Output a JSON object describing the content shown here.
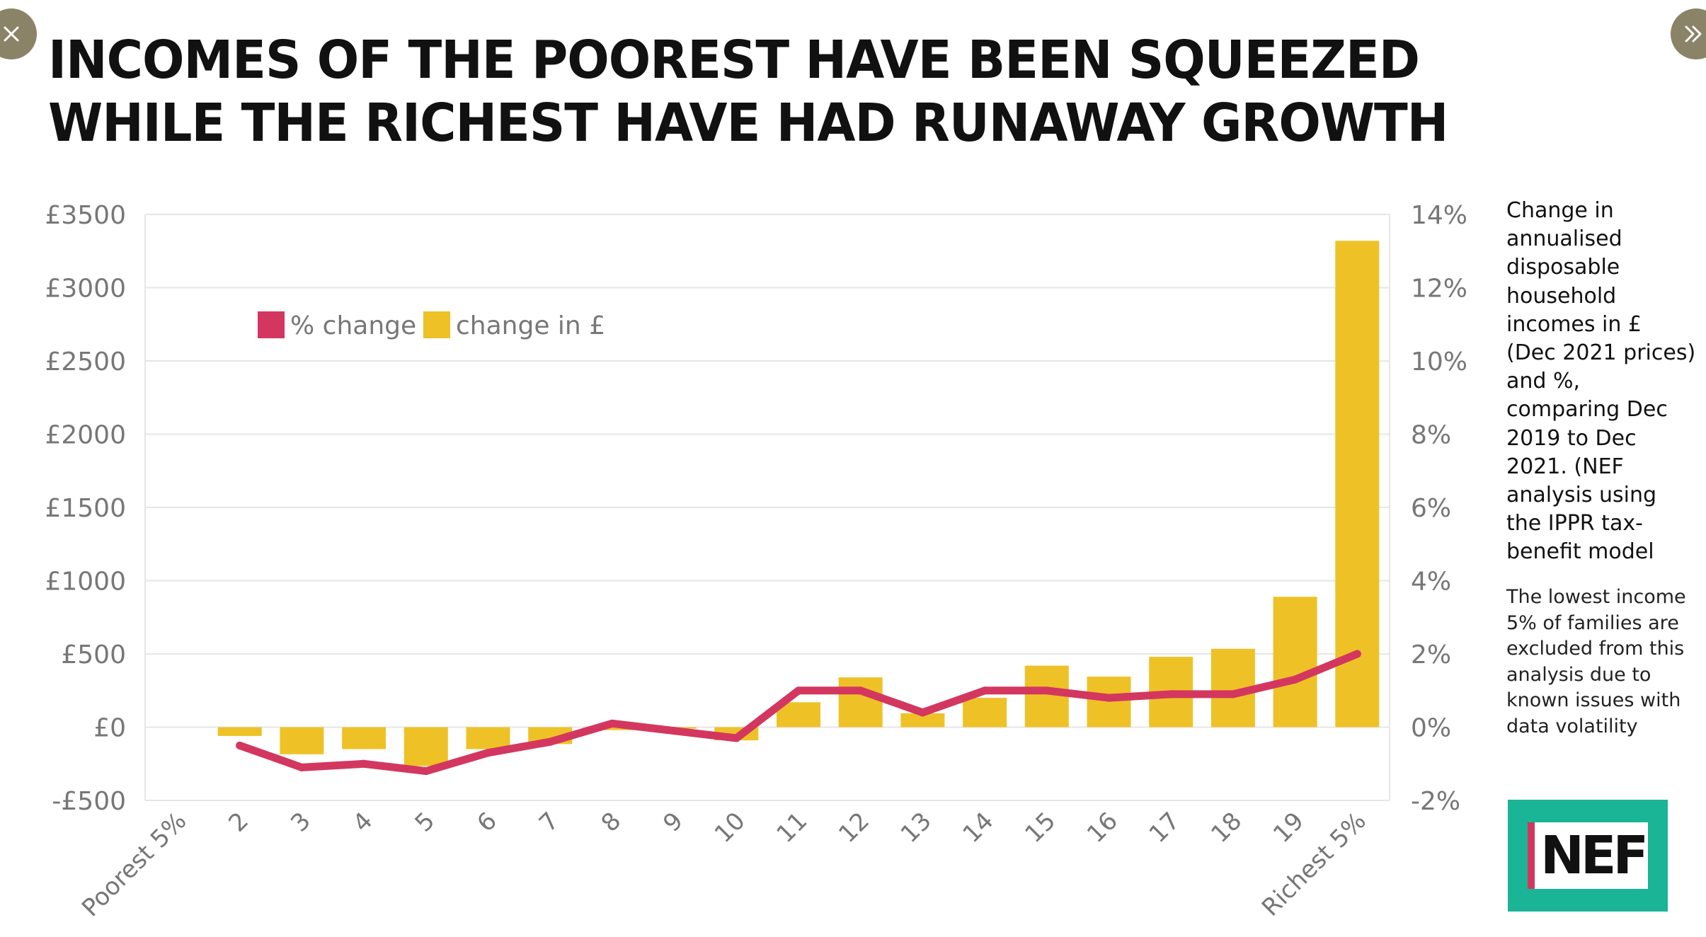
{
  "title": {
    "line1": "INCOMES OF THE POOREST HAVE BEEN SQUEEZED",
    "line2": "WHILE THE RICHEST HAVE HAD RUNAWAY GROWTH"
  },
  "nav": {
    "close_icon": "close-icon",
    "next_icon": "chevron-double-right-icon"
  },
  "side_note": "Change in annualised disposable household incomes in £ (Dec 2021 prices) and %, comparing Dec 2019 to Dec 2021. (NEF analysis using the IPPR tax-benefit model",
  "side_note_2": "The lowest income 5% of families are excluded from this analysis due to known issues with data volatility",
  "logo": {
    "text": "NEF"
  },
  "colors": {
    "bar": "#eec227",
    "line": "#d3375f",
    "grid": "#e6e6e6",
    "axis_text": "#777777",
    "logo_bg": "#1ab496",
    "nav": "#8b8367"
  },
  "chart_data": {
    "type": "bar",
    "categories": [
      "Poorest 5%",
      "2",
      "3",
      "4",
      "5",
      "6",
      "7",
      "8",
      "9",
      "10",
      "11",
      "12",
      "13",
      "14",
      "15",
      "16",
      "17",
      "18",
      "19",
      "Richest 5%"
    ],
    "series": [
      {
        "name": "change in £",
        "type": "bar",
        "axis": "left",
        "values": [
          null,
          -60,
          -185,
          -150,
          -265,
          -150,
          -115,
          -20,
          -10,
          -90,
          170,
          340,
          95,
          200,
          420,
          345,
          480,
          535,
          890,
          3320
        ]
      },
      {
        "name": "% change",
        "type": "line",
        "axis": "right",
        "values": [
          null,
          -0.5,
          -1.1,
          -1.0,
          -1.2,
          -0.7,
          -0.4,
          0.1,
          -0.1,
          -0.3,
          1.0,
          1.0,
          0.4,
          1.0,
          1.0,
          0.8,
          0.9,
          0.9,
          1.3,
          2.0
        ]
      }
    ],
    "y_left": {
      "ylim": [
        -500,
        3500
      ],
      "ticks": [
        -500,
        0,
        500,
        1000,
        1500,
        2000,
        2500,
        3000,
        3500
      ],
      "tick_labels": [
        "-£500",
        "£0",
        "£500",
        "£1000",
        "£1500",
        "£2000",
        "£2500",
        "£3000",
        "£3500"
      ]
    },
    "y_right": {
      "ylim": [
        -2,
        14
      ],
      "ticks": [
        -2,
        0,
        2,
        4,
        6,
        8,
        10,
        12,
        14
      ],
      "tick_labels": [
        "-2%",
        "0%",
        "2%",
        "4%",
        "6%",
        "8%",
        "10%",
        "12%",
        "14%"
      ]
    },
    "legend": {
      "placement": "top-left",
      "entries": [
        {
          "label": "% change",
          "color": "#d3375f"
        },
        {
          "label": "change in £",
          "color": "#eec227"
        }
      ]
    },
    "grid": true
  }
}
